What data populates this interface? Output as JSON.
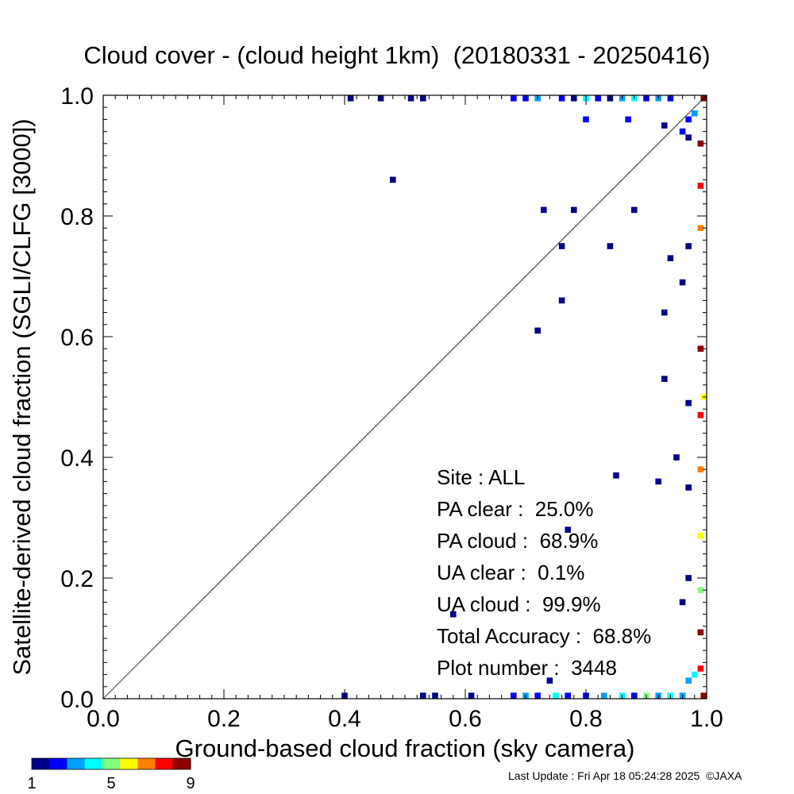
{
  "title": "Cloud cover - (cloud height 1km)  (20180331 - 20250416)",
  "footer": "Last Update : Fri Apr 18 05:24:28 2025  ©JAXA",
  "colorbar": {
    "ticks": [
      "1",
      "5",
      "9"
    ],
    "colors": [
      "#00008b",
      "#0000ff",
      "#00a0ff",
      "#00ffff",
      "#80ff80",
      "#ffff00",
      "#ff8000",
      "#ff0000",
      "#8b0000"
    ]
  },
  "stats": [
    {
      "label": "Site : ALL",
      "value": ""
    },
    {
      "label": "PA clear :",
      "value": "25.0%"
    },
    {
      "label": "PA cloud :",
      "value": "68.9%"
    },
    {
      "label": "UA clear :",
      "value": "0.1%"
    },
    {
      "label": "UA cloud :",
      "value": "99.9%"
    },
    {
      "label": "Total Accuracy :",
      "value": "68.8%"
    },
    {
      "label": "Plot number :",
      "value": "3448"
    }
  ],
  "chart_data": {
    "type": "heatmap",
    "title": "Cloud cover - (cloud height 1km)  (20180331 - 20250416)",
    "xlabel": "Ground-based cloud fraction (sky camera)",
    "ylabel": "Satellite-derived cloud fraction (SGLI/CLFG [3000])",
    "xlim": [
      0.0,
      1.0
    ],
    "ylim": [
      0.0,
      1.0
    ],
    "xticks": [
      "0.0",
      "0.2",
      "0.4",
      "0.6",
      "0.8",
      "1.0"
    ],
    "yticks": [
      "0.0",
      "0.2",
      "0.4",
      "0.6",
      "0.8",
      "1.0"
    ],
    "diagonal": true,
    "grid": false,
    "count_range": [
      1,
      9
    ],
    "cell_size": 0.01,
    "points": [
      [
        0.48,
        0.86,
        1
      ],
      [
        0.72,
        0.61,
        1
      ],
      [
        0.73,
        0.81,
        1
      ],
      [
        0.76,
        0.75,
        1
      ],
      [
        0.76,
        0.66,
        1
      ],
      [
        0.78,
        0.81,
        1
      ],
      [
        0.8,
        0.96,
        2
      ],
      [
        0.84,
        0.75,
        1
      ],
      [
        0.85,
        0.37,
        1
      ],
      [
        0.87,
        0.96,
        2
      ],
      [
        0.88,
        0.81,
        1
      ],
      [
        0.92,
        0.36,
        1
      ],
      [
        0.93,
        0.64,
        1
      ],
      [
        0.93,
        0.53,
        1
      ],
      [
        0.94,
        0.73,
        1
      ],
      [
        0.95,
        0.4,
        1
      ],
      [
        0.96,
        0.69,
        1
      ],
      [
        0.97,
        0.75,
        1
      ],
      [
        0.97,
        0.49,
        1
      ],
      [
        0.97,
        0.35,
        1
      ],
      [
        0.97,
        0.2,
        1
      ],
      [
        0.96,
        0.16,
        1
      ],
      [
        0.58,
        0.14,
        1
      ],
      [
        0.77,
        0.28,
        1
      ],
      [
        0.74,
        0.03,
        1
      ],
      [
        0.93,
        0.95,
        1
      ],
      [
        0.96,
        0.94,
        2
      ],
      [
        0.97,
        0.93,
        1
      ],
      [
        0.41,
        0.995,
        1
      ],
      [
        0.46,
        0.995,
        1
      ],
      [
        0.51,
        0.995,
        1
      ],
      [
        0.53,
        0.995,
        1
      ],
      [
        0.68,
        0.995,
        2
      ],
      [
        0.7,
        0.995,
        2
      ],
      [
        0.72,
        0.995,
        3
      ],
      [
        0.76,
        0.995,
        2
      ],
      [
        0.78,
        0.995,
        1
      ],
      [
        0.8,
        0.995,
        4
      ],
      [
        0.82,
        0.995,
        2
      ],
      [
        0.84,
        0.995,
        1
      ],
      [
        0.86,
        0.995,
        3
      ],
      [
        0.88,
        0.995,
        4
      ],
      [
        0.9,
        0.995,
        2
      ],
      [
        0.92,
        0.995,
        3
      ],
      [
        0.94,
        0.995,
        2
      ],
      [
        0.4,
        0.005,
        1
      ],
      [
        0.53,
        0.005,
        1
      ],
      [
        0.55,
        0.005,
        1
      ],
      [
        0.61,
        0.005,
        1
      ],
      [
        0.68,
        0.005,
        2
      ],
      [
        0.7,
        0.005,
        3
      ],
      [
        0.72,
        0.005,
        2
      ],
      [
        0.75,
        0.005,
        4
      ],
      [
        0.77,
        0.005,
        2
      ],
      [
        0.8,
        0.005,
        2
      ],
      [
        0.83,
        0.005,
        3
      ],
      [
        0.86,
        0.005,
        4
      ],
      [
        0.88,
        0.005,
        2
      ],
      [
        0.9,
        0.005,
        5
      ],
      [
        0.92,
        0.005,
        3
      ],
      [
        0.94,
        0.005,
        4
      ],
      [
        0.96,
        0.005,
        3
      ],
      [
        0.995,
        0.995,
        9
      ],
      [
        0.995,
        0.005,
        9
      ],
      [
        0.995,
        0.5,
        6
      ],
      [
        0.99,
        0.92,
        9
      ],
      [
        0.99,
        0.85,
        8
      ],
      [
        0.99,
        0.78,
        7
      ],
      [
        0.99,
        0.58,
        9
      ],
      [
        0.99,
        0.47,
        8
      ],
      [
        0.99,
        0.38,
        7
      ],
      [
        0.99,
        0.27,
        6
      ],
      [
        0.99,
        0.18,
        5
      ],
      [
        0.99,
        0.11,
        9
      ],
      [
        0.99,
        0.05,
        8
      ],
      [
        0.98,
        0.04,
        4
      ],
      [
        0.97,
        0.03,
        3
      ],
      [
        0.98,
        0.97,
        3
      ],
      [
        0.97,
        0.96,
        2
      ]
    ]
  }
}
